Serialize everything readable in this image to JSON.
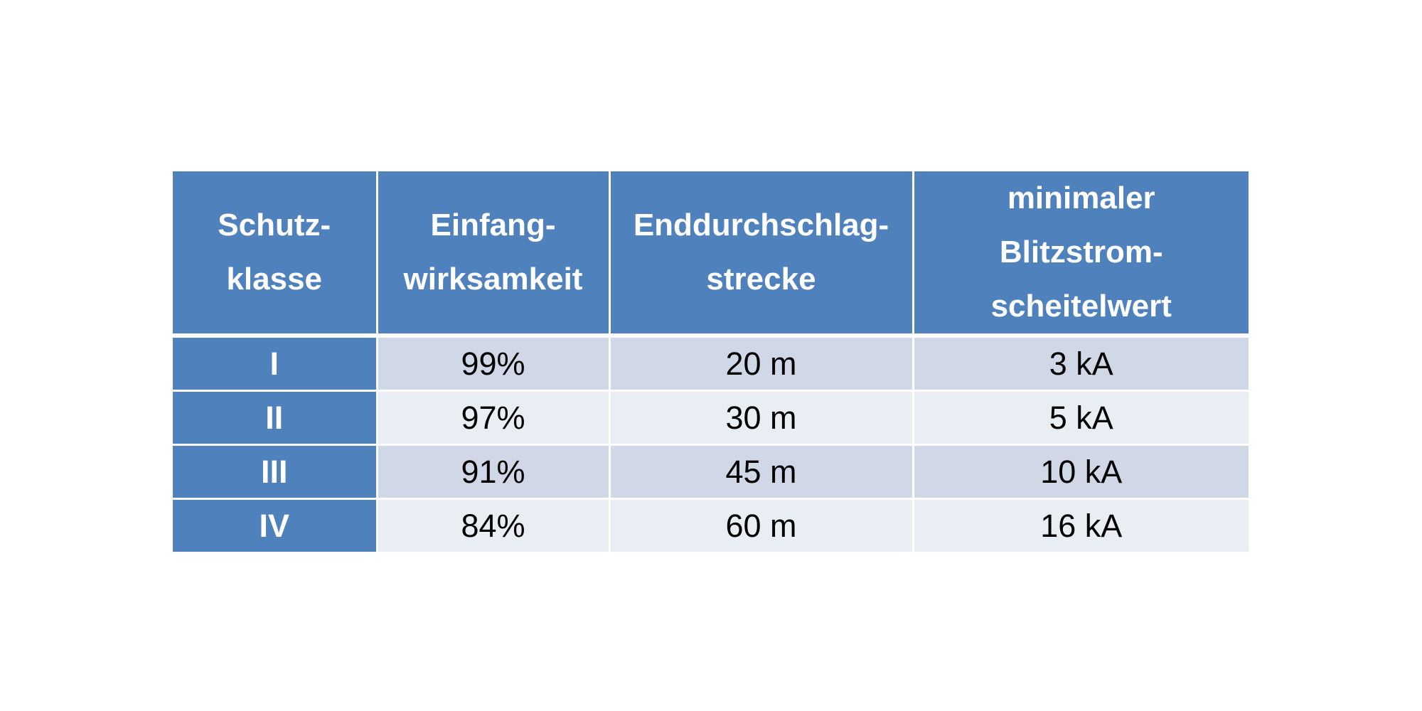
{
  "table": {
    "headers": [
      [
        "Schutz-",
        "klasse"
      ],
      [
        "Einfang-",
        "wirksamkeit"
      ],
      [
        "Enddurchschlag-",
        "strecke"
      ],
      [
        "minimaler",
        "Blitzstrom-",
        "scheitelwert"
      ]
    ],
    "rows": [
      [
        "I",
        "99%",
        "20 m",
        "3 kA"
      ],
      [
        "II",
        "97%",
        "30 m",
        "5 kA"
      ],
      [
        "III",
        "91%",
        "45 m",
        "10 kA"
      ],
      [
        "IV",
        "84%",
        "60 m",
        "16 kA"
      ]
    ]
  },
  "colors": {
    "header_bg": "#4f81bd",
    "row_odd_bg": "#d0d8e8",
    "row_even_bg": "#e9edf4",
    "header_text": "#ffffff"
  }
}
